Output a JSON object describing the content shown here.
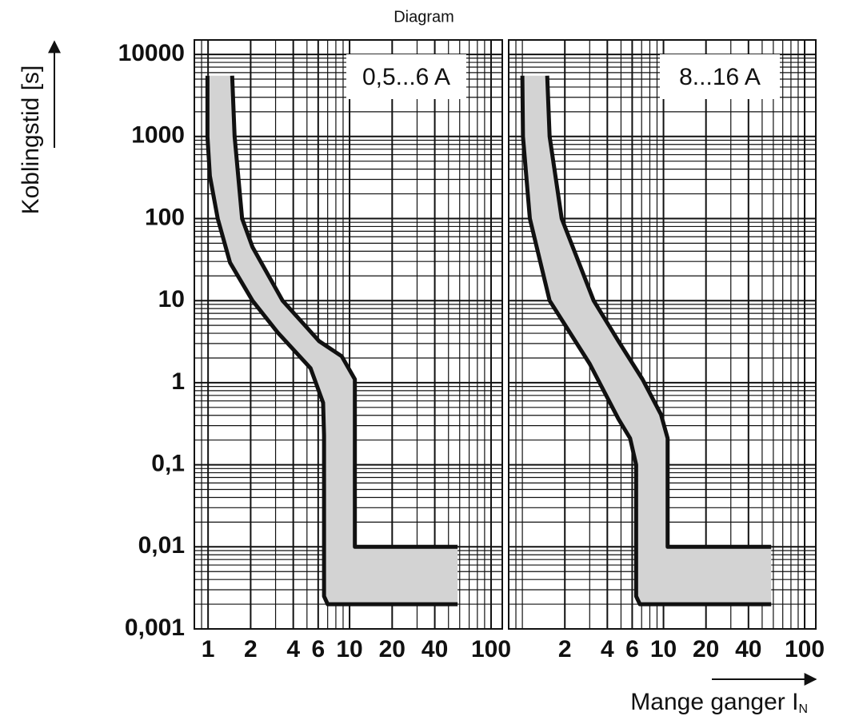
{
  "title": "Diagram",
  "y_label": "Koblingstid [s]",
  "x_label": "Mange ganger I",
  "x_label_sub": "N",
  "chart_data": [
    {
      "type": "band",
      "annotation": "0,5...6 A",
      "log_x": true,
      "log_y": true,
      "grid": true,
      "band_color": "#d3d3d3",
      "line_color": "#111111",
      "ytick_labels": true,
      "xlim": [
        0.8,
        120
      ],
      "ylim": [
        0.001,
        15000
      ],
      "xticks": [
        1,
        2,
        4,
        6,
        10,
        20,
        40,
        100
      ],
      "yticks": [
        {
          "value": 0.001,
          "label": "0,001"
        },
        {
          "value": 0.01,
          "label": "0,01"
        },
        {
          "value": 0.1,
          "label": "0,1"
        },
        1,
        10,
        100,
        1000,
        10000
      ],
      "series": [
        {
          "x": [
            1.48,
            1.54,
            1.74,
            2.06,
            3.36,
            6.1,
            8.8,
            10.9,
            10.9,
            58
          ],
          "values": [
            5500,
            1000,
            100,
            45,
            10,
            3.2,
            2.1,
            1.1,
            0.01,
            0.01
          ]
        },
        {
          "x": [
            0.99,
            0.99,
            1.03,
            1.17,
            1.43,
            2.06,
            3.1,
            5.3,
            6.5,
            6.6,
            6.6,
            7,
            58
          ],
          "values": [
            5500,
            1000,
            330,
            100,
            29,
            10,
            4.1,
            1.5,
            0.57,
            0.23,
            0.0025,
            0.002,
            0.002
          ]
        }
      ]
    },
    {
      "type": "band",
      "annotation": "8...16 A",
      "log_x": true,
      "log_y": true,
      "grid": true,
      "band_color": "#d3d3d3",
      "line_color": "#111111",
      "ytick_labels": false,
      "xlim": [
        0.8,
        120
      ],
      "ylim": [
        0.001,
        15000
      ],
      "xticks": [
        2,
        4,
        6,
        10,
        20,
        40,
        100
      ],
      "yticks": [
        0.001,
        0.01,
        0.1,
        1,
        10,
        100,
        1000,
        10000
      ],
      "series": [
        {
          "x": [
            1.5,
            1.56,
            1.9,
            3.2,
            4.8,
            7.1,
            9.6,
            10.7,
            10.7,
            58
          ],
          "values": [
            5500,
            1000,
            100,
            10,
            3.2,
            1.1,
            0.41,
            0.21,
            0.01,
            0.01
          ]
        },
        {
          "x": [
            1.0,
            1.01,
            1.13,
            1.56,
            3.0,
            4.8,
            5.8,
            6.4,
            6.4,
            6.8,
            58
          ],
          "values": [
            5500,
            1000,
            100,
            10,
            1.7,
            0.36,
            0.21,
            0.1,
            0.0025,
            0.002,
            0.002
          ]
        }
      ]
    }
  ]
}
